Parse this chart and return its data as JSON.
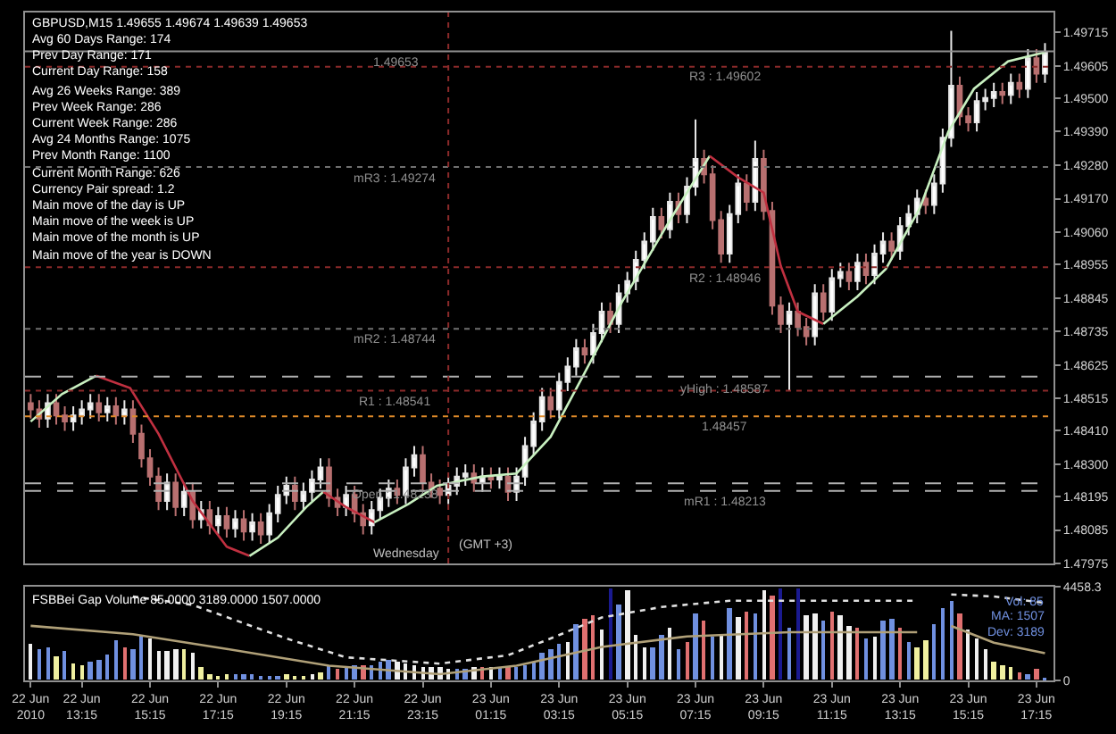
{
  "chart_data": [
    {
      "type": "candlestick",
      "title": "GBPUSD,M15 1.49655 1.49674 1.49639 1.49653",
      "annotations": [
        "Avg 60 Days Range: 174",
        "Prev Day Range: 171",
        "Current Day Range: 158",
        "Avg 26 Weeks Range: 389",
        "Prev Week Range: 286",
        "Current Week Range: 286",
        "Avg 24 Months Range: 1075",
        "Prev Month Range: 1100",
        "Current Month Range: 626",
        "Currency Pair spread: 1.2",
        "Main move of the day is UP",
        "Main move of the week is UP",
        "Main move of the month is UP",
        "Main move of the year is DOWN",
        {
          "text": "(GMT +3)",
          "x": "2010-06-23T00:00",
          "y": 1.48
        }
      ],
      "x": [
        "2010-06-22T11:45",
        "2010-06-22T12:00",
        "2010-06-22T12:15",
        "2010-06-22T12:30",
        "2010-06-22T12:45",
        "2010-06-22T13:00",
        "2010-06-22T13:15",
        "2010-06-22T13:30",
        "2010-06-22T13:45",
        "2010-06-22T14:00",
        "2010-06-22T14:15",
        "2010-06-22T14:30",
        "2010-06-22T14:45",
        "2010-06-22T15:00",
        "2010-06-22T15:15",
        "2010-06-22T15:30",
        "2010-06-22T15:45",
        "2010-06-22T16:00",
        "2010-06-22T16:15",
        "2010-06-22T16:30",
        "2010-06-22T16:45",
        "2010-06-22T17:00",
        "2010-06-22T17:15",
        "2010-06-22T17:30",
        "2010-06-22T17:45",
        "2010-06-22T18:00",
        "2010-06-22T18:15",
        "2010-06-22T18:30",
        "2010-06-22T18:45",
        "2010-06-22T19:00",
        "2010-06-22T19:15",
        "2010-06-22T19:30",
        "2010-06-22T19:45",
        "2010-06-22T20:00",
        "2010-06-22T20:15",
        "2010-06-22T20:30",
        "2010-06-22T20:45",
        "2010-06-22T21:00",
        "2010-06-22T21:15",
        "2010-06-22T21:30",
        "2010-06-22T21:45",
        "2010-06-22T22:00",
        "2010-06-22T22:15",
        "2010-06-22T22:30",
        "2010-06-22T22:45",
        "2010-06-22T23:00",
        "2010-06-22T23:15",
        "2010-06-22T23:30",
        "2010-06-22T23:45",
        "2010-06-23T00:00",
        "2010-06-23T00:15",
        "2010-06-23T00:30",
        "2010-06-23T00:45",
        "2010-06-23T01:00",
        "2010-06-23T01:15",
        "2010-06-23T01:30",
        "2010-06-23T01:45",
        "2010-06-23T02:00",
        "2010-06-23T02:15",
        "2010-06-23T02:30",
        "2010-06-23T02:45",
        "2010-06-23T03:00",
        "2010-06-23T03:15",
        "2010-06-23T03:30",
        "2010-06-23T03:45",
        "2010-06-23T04:00",
        "2010-06-23T04:15",
        "2010-06-23T04:30",
        "2010-06-23T04:45",
        "2010-06-23T05:00",
        "2010-06-23T05:15",
        "2010-06-23T05:30",
        "2010-06-23T05:45",
        "2010-06-23T06:00",
        "2010-06-23T06:15",
        "2010-06-23T06:30",
        "2010-06-23T06:45",
        "2010-06-23T07:00",
        "2010-06-23T07:15",
        "2010-06-23T07:30",
        "2010-06-23T07:45",
        "2010-06-23T08:00",
        "2010-06-23T08:15",
        "2010-06-23T08:30",
        "2010-06-23T08:45",
        "2010-06-23T09:00",
        "2010-06-23T09:15",
        "2010-06-23T09:30",
        "2010-06-23T09:45",
        "2010-06-23T10:00",
        "2010-06-23T10:15",
        "2010-06-23T10:30",
        "2010-06-23T10:45",
        "2010-06-23T11:00",
        "2010-06-23T11:15",
        "2010-06-23T11:30",
        "2010-06-23T11:45",
        "2010-06-23T12:00",
        "2010-06-23T12:15",
        "2010-06-23T12:30",
        "2010-06-23T12:45",
        "2010-06-23T13:00",
        "2010-06-23T13:15",
        "2010-06-23T13:30",
        "2010-06-23T13:45",
        "2010-06-23T14:00",
        "2010-06-23T14:15",
        "2010-06-23T14:30",
        "2010-06-23T14:45",
        "2010-06-23T15:00",
        "2010-06-23T15:15",
        "2010-06-23T15:30",
        "2010-06-23T15:45",
        "2010-06-23T16:00",
        "2010-06-23T16:15",
        "2010-06-23T16:30",
        "2010-06-23T16:45",
        "2010-06-23T17:00",
        "2010-06-23T17:15",
        "2010-06-23T17:30"
      ],
      "ohlc": [
        [
          1.485,
          1.4853,
          1.4845,
          1.4848
        ],
        [
          1.4848,
          1.4851,
          1.4842,
          1.4845
        ],
        [
          1.4845,
          1.4853,
          1.4842,
          1.485
        ],
        [
          1.485,
          1.4853,
          1.4843,
          1.4846
        ],
        [
          1.4846,
          1.4849,
          1.4841,
          1.4844
        ],
        [
          1.4844,
          1.4849,
          1.4841,
          1.4846
        ],
        [
          1.4846,
          1.4851,
          1.4843,
          1.4848
        ],
        [
          1.4848,
          1.4853,
          1.4845,
          1.485
        ],
        [
          1.485,
          1.4853,
          1.4844,
          1.4847
        ],
        [
          1.4847,
          1.4852,
          1.4844,
          1.4849
        ],
        [
          1.4849,
          1.4852,
          1.4843,
          1.4846
        ],
        [
          1.4846,
          1.4851,
          1.4843,
          1.4848
        ],
        [
          1.4848,
          1.4851,
          1.4837,
          1.484
        ],
        [
          1.484,
          1.4843,
          1.4829,
          1.4832
        ],
        [
          1.4832,
          1.4835,
          1.4823,
          1.4826
        ],
        [
          1.4826,
          1.4829,
          1.4815,
          1.4818
        ],
        [
          1.4818,
          1.4827,
          1.4815,
          1.4824
        ],
        [
          1.4824,
          1.4827,
          1.4813,
          1.4816
        ],
        [
          1.4816,
          1.4824,
          1.4813,
          1.4821
        ],
        [
          1.4821,
          1.4824,
          1.4809,
          1.4812
        ],
        [
          1.4812,
          1.4818,
          1.4809,
          1.4815
        ],
        [
          1.4815,
          1.4818,
          1.4807,
          1.481
        ],
        [
          1.481,
          1.4816,
          1.4807,
          1.4813
        ],
        [
          1.4813,
          1.4816,
          1.4806,
          1.4809
        ],
        [
          1.4809,
          1.4815,
          1.4806,
          1.4812
        ],
        [
          1.4812,
          1.4815,
          1.4805,
          1.4808
        ],
        [
          1.4808,
          1.4814,
          1.4805,
          1.4811
        ],
        [
          1.4811,
          1.4814,
          1.4804,
          1.4807
        ],
        [
          1.4807,
          1.4817,
          1.4804,
          1.4814
        ],
        [
          1.4814,
          1.4823,
          1.4811,
          1.482
        ],
        [
          1.482,
          1.4826,
          1.4817,
          1.4823
        ],
        [
          1.4823,
          1.4826,
          1.4815,
          1.4818
        ],
        [
          1.4818,
          1.4824,
          1.4815,
          1.4821
        ],
        [
          1.4821,
          1.4828,
          1.4818,
          1.4825
        ],
        [
          1.4825,
          1.4832,
          1.4822,
          1.4829
        ],
        [
          1.4829,
          1.4832,
          1.4816,
          1.4819
        ],
        [
          1.4819,
          1.4822,
          1.4813,
          1.4816
        ],
        [
          1.4816,
          1.4823,
          1.4813,
          1.482
        ],
        [
          1.482,
          1.4823,
          1.4811,
          1.4814
        ],
        [
          1.4814,
          1.4817,
          1.4807,
          1.481
        ],
        [
          1.481,
          1.4818,
          1.4807,
          1.4815
        ],
        [
          1.4815,
          1.4822,
          1.4812,
          1.4819
        ],
        [
          1.4819,
          1.4825,
          1.4816,
          1.4822
        ],
        [
          1.4822,
          1.4825,
          1.4817,
          1.482
        ],
        [
          1.482,
          1.4832,
          1.4817,
          1.4829
        ],
        [
          1.4829,
          1.4836,
          1.4826,
          1.4833
        ],
        [
          1.4833,
          1.4836,
          1.4821,
          1.4824
        ],
        [
          1.4824,
          1.4827,
          1.4819,
          1.4822
        ],
        [
          1.4822,
          1.4825,
          1.4817,
          1.482
        ],
        [
          1.482,
          1.4826,
          1.4817,
          1.4823
        ],
        [
          1.4823,
          1.4829,
          1.482,
          1.4826
        ],
        [
          1.4826,
          1.483,
          1.4823,
          1.4827
        ],
        [
          1.4827,
          1.483,
          1.4821,
          1.4824
        ],
        [
          1.4824,
          1.4829,
          1.4821,
          1.4826
        ],
        [
          1.4826,
          1.4829,
          1.4822,
          1.4825
        ],
        [
          1.4825,
          1.4829,
          1.4822,
          1.4826
        ],
        [
          1.4826,
          1.4829,
          1.4818,
          1.4821
        ],
        [
          1.4821,
          1.4829,
          1.4818,
          1.4826
        ],
        [
          1.4826,
          1.4839,
          1.4823,
          1.4836
        ],
        [
          1.4836,
          1.4847,
          1.4833,
          1.4844
        ],
        [
          1.4844,
          1.4855,
          1.4841,
          1.4852
        ],
        [
          1.4852,
          1.4855,
          1.4845,
          1.4848
        ],
        [
          1.4848,
          1.486,
          1.4845,
          1.4857
        ],
        [
          1.4857,
          1.4865,
          1.4854,
          1.4862
        ],
        [
          1.4862,
          1.4871,
          1.4859,
          1.4868
        ],
        [
          1.4868,
          1.4871,
          1.4863,
          1.4866
        ],
        [
          1.4866,
          1.4876,
          1.4863,
          1.4873
        ],
        [
          1.4873,
          1.4883,
          1.487,
          1.488
        ],
        [
          1.488,
          1.4883,
          1.4873,
          1.4876
        ],
        [
          1.4876,
          1.4889,
          1.4873,
          1.4886
        ],
        [
          1.4886,
          1.4893,
          1.4883,
          1.489
        ],
        [
          1.489,
          1.49,
          1.4887,
          1.4897
        ],
        [
          1.4897,
          1.4906,
          1.4894,
          1.4903
        ],
        [
          1.4903,
          1.4914,
          1.49,
          1.4911
        ],
        [
          1.4911,
          1.4914,
          1.4904,
          1.4907
        ],
        [
          1.4907,
          1.4919,
          1.4904,
          1.4916
        ],
        [
          1.4916,
          1.4919,
          1.4909,
          1.4912
        ],
        [
          1.4912,
          1.4924,
          1.4909,
          1.4921
        ],
        [
          1.4921,
          1.4943,
          1.4918,
          1.493
        ],
        [
          1.493,
          1.4933,
          1.4922,
          1.4925
        ],
        [
          1.4925,
          1.4928,
          1.4907,
          1.491
        ],
        [
          1.491,
          1.4913,
          1.4896,
          1.4899
        ],
        [
          1.4899,
          1.4915,
          1.4896,
          1.4912
        ],
        [
          1.4912,
          1.4925,
          1.4909,
          1.4922
        ],
        [
          1.4922,
          1.4925,
          1.4913,
          1.4916
        ],
        [
          1.4916,
          1.4936,
          1.4913,
          1.493
        ],
        [
          1.493,
          1.4933,
          1.491,
          1.4913
        ],
        [
          1.4913,
          1.4916,
          1.4879,
          1.4882
        ],
        [
          1.4882,
          1.4885,
          1.4873,
          1.4876
        ],
        [
          1.4876,
          1.4883,
          1.4854,
          1.488
        ],
        [
          1.488,
          1.4883,
          1.4872,
          1.4875
        ],
        [
          1.4875,
          1.4878,
          1.4869,
          1.4872
        ],
        [
          1.4872,
          1.4889,
          1.4869,
          1.4886
        ],
        [
          1.4886,
          1.4889,
          1.4877,
          1.488
        ],
        [
          1.488,
          1.4894,
          1.4877,
          1.4891
        ],
        [
          1.4891,
          1.4896,
          1.4888,
          1.4893
        ],
        [
          1.4893,
          1.4896,
          1.4887,
          1.489
        ],
        [
          1.489,
          1.4899,
          1.4887,
          1.4896
        ],
        [
          1.4896,
          1.4899,
          1.4889,
          1.4892
        ],
        [
          1.4892,
          1.4902,
          1.4889,
          1.4899
        ],
        [
          1.4899,
          1.4906,
          1.4896,
          1.4903
        ],
        [
          1.4903,
          1.4906,
          1.4897,
          1.49
        ],
        [
          1.49,
          1.4911,
          1.4897,
          1.4908
        ],
        [
          1.4908,
          1.4915,
          1.4905,
          1.4912
        ],
        [
          1.4912,
          1.492,
          1.4909,
          1.4917
        ],
        [
          1.4917,
          1.492,
          1.4912,
          1.4915
        ],
        [
          1.4915,
          1.4925,
          1.4912,
          1.4922
        ],
        [
          1.4922,
          1.494,
          1.4919,
          1.4937
        ],
        [
          1.4937,
          1.4972,
          1.4934,
          1.4954
        ],
        [
          1.4954,
          1.4957,
          1.4941,
          1.4944
        ],
        [
          1.4944,
          1.4947,
          1.4939,
          1.4942
        ],
        [
          1.4942,
          1.4952,
          1.4939,
          1.4949
        ],
        [
          1.4949,
          1.4953,
          1.4946,
          1.495
        ],
        [
          1.495,
          1.4955,
          1.4947,
          1.4952
        ],
        [
          1.4952,
          1.4955,
          1.4948,
          1.4951
        ],
        [
          1.4951,
          1.4958,
          1.4948,
          1.4955
        ],
        [
          1.4955,
          1.4958,
          1.495,
          1.4953
        ],
        [
          1.4953,
          1.4966,
          1.495,
          1.4963
        ],
        [
          1.4963,
          1.4966,
          1.4955,
          1.4958
        ],
        [
          1.4958,
          1.4968,
          1.4955,
          1.4965
        ]
      ],
      "series": [
        {
          "type": "line",
          "color": "#c8f0c0",
          "x": [
            "2010-06-22T11:45",
            "2010-06-22T12:40",
            "2010-06-22T13:40"
          ],
          "values": [
            1.4844,
            1.4853,
            1.4859
          ]
        },
        {
          "type": "line",
          "color": "#c03040",
          "x": [
            "2010-06-22T13:40",
            "2010-06-22T14:40",
            "2010-06-22T15:30",
            "2010-06-22T16:30",
            "2010-06-22T17:30",
            "2010-06-22T18:10"
          ],
          "values": [
            1.4859,
            1.4855,
            1.484,
            1.4818,
            1.4803,
            1.48
          ]
        },
        {
          "type": "line",
          "color": "#c8f0c0",
          "x": [
            "2010-06-22T18:10",
            "2010-06-22T19:00",
            "2010-06-22T19:50",
            "2010-06-22T20:20"
          ],
          "values": [
            1.48,
            1.4806,
            1.4816,
            1.4821
          ]
        },
        {
          "type": "line",
          "color": "#c03040",
          "x": [
            "2010-06-22T20:20",
            "2010-06-22T21:00",
            "2010-06-22T21:50"
          ],
          "values": [
            1.4821,
            1.4816,
            1.4811
          ]
        },
        {
          "type": "line",
          "color": "#c8f0c0",
          "x": [
            "2010-06-22T21:50",
            "2010-06-22T22:50",
            "2010-06-22T23:40",
            "2010-06-23T01:00",
            "2010-06-23T02:00",
            "2010-06-23T03:00",
            "2010-06-23T04:00",
            "2010-06-23T05:05",
            "2010-06-23T06:30",
            "2010-06-23T07:40"
          ],
          "values": [
            1.4811,
            1.4817,
            1.4823,
            1.4826,
            1.4827,
            1.4839,
            1.486,
            1.4883,
            1.491,
            1.4931
          ]
        },
        {
          "type": "line",
          "color": "#c03040",
          "x": [
            "2010-06-23T07:40",
            "2010-06-23T08:30",
            "2010-06-23T09:15",
            "2010-06-23T09:45",
            "2010-06-23T10:15",
            "2010-06-23T11:00"
          ],
          "values": [
            1.4931,
            1.4924,
            1.4919,
            1.4895,
            1.488,
            1.4876
          ]
        },
        {
          "type": "line",
          "color": "#c8f0c0",
          "x": [
            "2010-06-23T11:00",
            "2010-06-23T12:00",
            "2010-06-23T12:50",
            "2010-06-23T13:50",
            "2010-06-23T14:40",
            "2010-06-23T15:25",
            "2010-06-23T16:25",
            "2010-06-23T17:30"
          ],
          "values": [
            1.4876,
            1.4885,
            1.4894,
            1.4914,
            1.4939,
            1.4953,
            1.4962,
            1.4965
          ]
        }
      ],
      "ref_lines": [
        {
          "axis": "y",
          "value": 1.49602,
          "label": "R3 : 1.49602",
          "color": "#8b2a2a",
          "line_style": "dotted"
        },
        {
          "axis": "y",
          "value": 1.49274,
          "label": "mR3 : 1.49274",
          "color": "#707070",
          "line_style": "dotted"
        },
        {
          "axis": "y",
          "value": 1.48946,
          "label": "R2 : 1.48946",
          "color": "#8b2a2a",
          "line_style": "dotted"
        },
        {
          "axis": "y",
          "value": 1.48744,
          "label": "mR2 : 1.48744",
          "color": "#707070",
          "line_style": "dotted"
        },
        {
          "axis": "y",
          "value": 1.48587,
          "label": "yHigh : 1.48587",
          "color": "#b0b0b0",
          "line_style": "dashed"
        },
        {
          "axis": "y",
          "value": 1.48541,
          "label": "R1 : 1.48541",
          "color": "#8b2a2a",
          "line_style": "dotted"
        },
        {
          "axis": "y",
          "value": 1.48457,
          "label": "1.48457",
          "color": "#e08a2a",
          "line_style": "dotted"
        },
        {
          "axis": "y",
          "value": 1.48238,
          "label": "Open : 1.48238",
          "color": "#b0b0b0",
          "line_style": "dashed"
        },
        {
          "axis": "y",
          "value": 1.48213,
          "label": "mR1 : 1.48213",
          "color": "#b0b0b0",
          "line_style": "dashed"
        },
        {
          "axis": "y",
          "value": 1.49653,
          "label": "1.49653",
          "color": "#909090",
          "line_style": "solid"
        },
        {
          "axis": "x",
          "value": "2010-06-23T00:00",
          "label": "Wednesday",
          "color": "#8b2a2a",
          "line_style": "dotted"
        }
      ],
      "xlim": [
        "2010-06-22T11:35",
        "2010-06-23T17:45"
      ],
      "ylim": [
        1.47975,
        1.4978
      ],
      "yticks": [
        1.47975,
        {
          "value": 1.48085,
          "label": "1.48085"
        },
        1.48195,
        {
          "value": 1.483,
          "label": "1.48300"
        },
        {
          "value": 1.4841,
          "label": "1.48410"
        },
        1.48515,
        1.48625,
        1.48735,
        1.48845,
        1.48955,
        {
          "value": 1.4906,
          "label": "1.49060"
        },
        {
          "value": 1.4917,
          "label": "1.49170"
        },
        {
          "value": 1.4928,
          "label": "1.49280"
        },
        {
          "value": 1.4939,
          "label": "1.49390"
        },
        {
          "value": 1.495,
          "label": "1.49500"
        },
        1.49605,
        1.49715
      ],
      "tick_labels": "y"
    },
    {
      "type": "bar",
      "title": "FSBBei Gap Volume 85.0000 3189.0000 1507.0000",
      "annotations": [
        "Vol: 85",
        "MA: 1507",
        "Dev: 3189"
      ],
      "x": [
        "2010-06-22T11:45",
        "2010-06-22T12:00",
        "2010-06-22T12:15",
        "2010-06-22T12:30",
        "2010-06-22T12:45",
        "2010-06-22T13:00",
        "2010-06-22T13:15",
        "2010-06-22T13:30",
        "2010-06-22T13:45",
        "2010-06-22T14:00",
        "2010-06-22T14:15",
        "2010-06-22T14:30",
        "2010-06-22T14:45",
        "2010-06-22T15:00",
        "2010-06-22T15:15",
        "2010-06-22T15:30",
        "2010-06-22T15:45",
        "2010-06-22T16:00",
        "2010-06-22T16:15",
        "2010-06-22T16:30",
        "2010-06-22T16:45",
        "2010-06-22T17:00",
        "2010-06-22T17:15",
        "2010-06-22T17:30",
        "2010-06-22T17:45",
        "2010-06-22T18:00",
        "2010-06-22T18:15",
        "2010-06-22T18:30",
        "2010-06-22T18:45",
        "2010-06-22T19:00",
        "2010-06-22T19:15",
        "2010-06-22T19:30",
        "2010-06-22T19:45",
        "2010-06-22T20:00",
        "2010-06-22T20:15",
        "2010-06-22T20:30",
        "2010-06-22T20:45",
        "2010-06-22T21:00",
        "2010-06-22T21:15",
        "2010-06-22T21:30",
        "2010-06-22T21:45",
        "2010-06-22T22:00",
        "2010-06-22T22:15",
        "2010-06-22T22:30",
        "2010-06-22T22:45",
        "2010-06-22T23:00",
        "2010-06-22T23:15",
        "2010-06-22T23:30",
        "2010-06-22T23:45",
        "2010-06-23T00:00",
        "2010-06-23T00:15",
        "2010-06-23T00:30",
        "2010-06-23T00:45",
        "2010-06-23T01:00",
        "2010-06-23T01:15",
        "2010-06-23T01:30",
        "2010-06-23T01:45",
        "2010-06-23T02:00",
        "2010-06-23T02:15",
        "2010-06-23T02:30",
        "2010-06-23T02:45",
        "2010-06-23T03:00",
        "2010-06-23T03:15",
        "2010-06-23T03:30",
        "2010-06-23T03:45",
        "2010-06-23T04:00",
        "2010-06-23T04:15",
        "2010-06-23T04:30",
        "2010-06-23T04:45",
        "2010-06-23T05:00",
        "2010-06-23T05:15",
        "2010-06-23T05:30",
        "2010-06-23T05:45",
        "2010-06-23T06:00",
        "2010-06-23T06:15",
        "2010-06-23T06:30",
        "2010-06-23T06:45",
        "2010-06-23T07:00",
        "2010-06-23T07:15",
        "2010-06-23T07:30",
        "2010-06-23T07:45",
        "2010-06-23T08:00",
        "2010-06-23T08:15",
        "2010-06-23T08:30",
        "2010-06-23T08:45",
        "2010-06-23T09:00",
        "2010-06-23T09:15",
        "2010-06-23T09:30",
        "2010-06-23T09:45",
        "2010-06-23T10:00",
        "2010-06-23T10:15",
        "2010-06-23T10:30",
        "2010-06-23T10:45",
        "2010-06-23T11:00",
        "2010-06-23T11:15",
        "2010-06-23T11:30",
        "2010-06-23T11:45",
        "2010-06-23T12:00",
        "2010-06-23T12:15",
        "2010-06-23T12:30",
        "2010-06-23T12:45",
        "2010-06-23T13:00",
        "2010-06-23T13:15",
        "2010-06-23T13:30",
        "2010-06-23T13:45",
        "2010-06-23T14:00",
        "2010-06-23T14:15",
        "2010-06-23T14:30",
        "2010-06-23T14:45",
        "2010-06-23T15:00",
        "2010-06-23T15:15",
        "2010-06-23T15:30",
        "2010-06-23T15:45",
        "2010-06-23T16:00",
        "2010-06-23T16:15",
        "2010-06-23T16:30",
        "2010-06-23T16:45",
        "2010-06-23T17:00",
        "2010-06-23T17:15",
        "2010-06-23T17:30"
      ],
      "values": [
        1700,
        1500,
        1600,
        1100,
        1400,
        800,
        700,
        900,
        1000,
        1200,
        1900,
        1600,
        1500,
        2200,
        2000,
        1400,
        1400,
        1500,
        1500,
        1300,
        600,
        300,
        200,
        300,
        300,
        300,
        300,
        200,
        200,
        200,
        300,
        200,
        200,
        300,
        400,
        700,
        500,
        600,
        700,
        700,
        700,
        900,
        1000,
        900,
        800,
        700,
        600,
        600,
        600,
        500,
        500,
        500,
        600,
        600,
        600,
        600,
        600,
        600,
        700,
        900,
        1300,
        1500,
        1700,
        1800,
        2700,
        2900,
        3100,
        2400,
        4400,
        3600,
        4300,
        2200,
        1600,
        1600,
        2200,
        2500,
        1500,
        1800,
        3200,
        2800,
        2100,
        2200,
        3400,
        3000,
        3300,
        3200,
        4300,
        4000,
        4400,
        2500,
        4400,
        3100,
        3200,
        2800,
        3300,
        3100,
        2600,
        2500,
        2000,
        2100,
        2800,
        2900,
        2500,
        1800,
        1600,
        1900,
        2700,
        3400,
        3800,
        3200,
        2400,
        2000,
        1500,
        900,
        700,
        600,
        400,
        300,
        500,
        100
      ],
      "colors": [
        "#f0f0f0",
        "#7090e0",
        "#7090e0",
        "#f0f0a0",
        "#7090e0",
        "#f0f0a0",
        "#f0f0a0",
        "#7090e0",
        "#7090e0",
        "#7090e0",
        "#7090e0",
        "#e07070",
        "#7090e0",
        "#7090e0",
        "#f0f0f0",
        "#f0f0f0",
        "#f0f0f0",
        "#f0f0f0",
        "#f0f0a0",
        "#f0f0f0",
        "#f0f0a0",
        "#f0f0a0",
        "#f0f0a0",
        "#f0f0a0",
        "#7090e0",
        "#7090e0",
        "#7090e0",
        "#7090e0",
        "#7090e0",
        "#7090e0",
        "#f0f0a0",
        "#f0f0a0",
        "#f0f0a0",
        "#f0f0f0",
        "#f0f0a0",
        "#7090e0",
        "#e07070",
        "#7090e0",
        "#7090e0",
        "#e07070",
        "#7090e0",
        "#7090e0",
        "#7090e0",
        "#f0f0f0",
        "#f0f0f0",
        "#f0f0f0",
        "#f0f0f0",
        "#f0f0f0",
        "#f0f0f0",
        "#f0f0f0",
        "#7090e0",
        "#7090e0",
        "#f0f0f0",
        "#e07070",
        "#f0f0f0",
        "#7090e0",
        "#e07070",
        "#7090e0",
        "#7090e0",
        "#7090e0",
        "#7090e0",
        "#7090e0",
        "#7090e0",
        "#f0f0f0",
        "#7090e0",
        "#e07070",
        "#e07070",
        "#f0f0f0",
        "#1a1a90",
        "#7090e0",
        "#f0f0f0",
        "#f0f0f0",
        "#f0f0f0",
        "#7090e0",
        "#7090e0",
        "#f0f0f0",
        "#7090e0",
        "#e07070",
        "#7090e0",
        "#e07070",
        "#7090e0",
        "#f0f0f0",
        "#7090e0",
        "#f0f0f0",
        "#e07070",
        "#7090e0",
        "#f0f0f0",
        "#e07070",
        "#1a1a90",
        "#7090e0",
        "#1a1a90",
        "#f0f0f0",
        "#f0f0f0",
        "#7090e0",
        "#e07070",
        "#f0f0f0",
        "#f0f0f0",
        "#e07070",
        "#7090e0",
        "#f0f0f0",
        "#7090e0",
        "#7090e0",
        "#e07070",
        "#7090e0",
        "#f0f0a0",
        "#f0f0a0",
        "#7090e0",
        "#7090e0",
        "#7090e0",
        "#e07070",
        "#f0f0f0",
        "#f0f0f0",
        "#f0f0f0",
        "#f0f0a0",
        "#f0f0a0",
        "#f0f0a0",
        "#e07070",
        "#7090e0",
        "#e07070",
        "#7090e0"
      ],
      "series": [
        {
          "type": "line",
          "color": "#b0a078",
          "line_style": "solid",
          "x": [
            "2010-06-22T11:45",
            "2010-06-22T14:45",
            "2010-06-22T17:30",
            "2010-06-22T20:30",
            "2010-06-22T23:45",
            "2010-06-23T02:00",
            "2010-06-23T04:30",
            "2010-06-23T07:00",
            "2010-06-23T10:00",
            "2010-06-23T13:45"
          ],
          "values": [
            2600,
            2200,
            1500,
            700,
            300,
            700,
            1600,
            2100,
            2300,
            2300
          ]
        },
        {
          "type": "line",
          "color": "#b0a078",
          "line_style": "solid",
          "x": [
            "2010-06-23T14:45",
            "2010-06-23T16:00",
            "2010-06-23T17:30"
          ],
          "values": [
            2600,
            1800,
            1300
          ]
        },
        {
          "type": "line",
          "color": "#e0e0e0",
          "line_style": "dotted",
          "x": [
            "2010-06-22T14:45",
            "2010-06-22T16:30",
            "2010-06-22T19:15",
            "2010-06-22T21:00",
            "2010-06-22T23:45",
            "2010-06-23T01:45",
            "2010-06-23T03:00",
            "2010-06-23T04:30",
            "2010-06-23T06:15",
            "2010-06-23T08:15",
            "2010-06-23T13:45"
          ],
          "values": [
            4000,
            3600,
            2000,
            1100,
            800,
            1200,
            2000,
            3000,
            3500,
            3800,
            3800
          ]
        },
        {
          "type": "line",
          "color": "#e0e0e0",
          "line_style": "dotted",
          "x": [
            "2010-06-23T14:45",
            "2010-06-23T16:00",
            "2010-06-23T17:30"
          ],
          "values": [
            4100,
            4000,
            3700
          ]
        }
      ],
      "xlim": [
        "2010-06-22T11:35",
        "2010-06-23T17:45"
      ],
      "xticks": [
        {
          "value": "2010-06-22T11:45",
          "label": "22 Jun 2010"
        },
        {
          "value": "2010-06-22T13:15",
          "label": "22 Jun 13:15"
        },
        {
          "value": "2010-06-22T15:15",
          "label": "22 Jun 15:15"
        },
        {
          "value": "2010-06-22T17:15",
          "label": "22 Jun 17:15"
        },
        {
          "value": "2010-06-22T19:15",
          "label": "22 Jun 19:15"
        },
        {
          "value": "2010-06-22T21:15",
          "label": "22 Jun 21:15"
        },
        {
          "value": "2010-06-22T23:15",
          "label": "22 Jun 23:15"
        },
        {
          "value": "2010-06-23T01:15",
          "label": "23 Jun 01:15"
        },
        {
          "value": "2010-06-23T03:15",
          "label": "23 Jun 03:15"
        },
        {
          "value": "2010-06-23T05:15",
          "label": "23 Jun 05:15"
        },
        {
          "value": "2010-06-23T07:15",
          "label": "23 Jun 07:15"
        },
        {
          "value": "2010-06-23T09:15",
          "label": "23 Jun 09:15"
        },
        {
          "value": "2010-06-23T11:15",
          "label": "23 Jun 11:15"
        },
        {
          "value": "2010-06-23T13:15",
          "label": "23 Jun 13:15"
        },
        {
          "value": "2010-06-23T15:15",
          "label": "23 Jun 15:15"
        },
        {
          "value": "2010-06-23T17:15",
          "label": "23 Jun 17:15"
        }
      ],
      "ylim": [
        0,
        4458.3
      ],
      "yticks": [
        0,
        4458.3
      ]
    }
  ]
}
